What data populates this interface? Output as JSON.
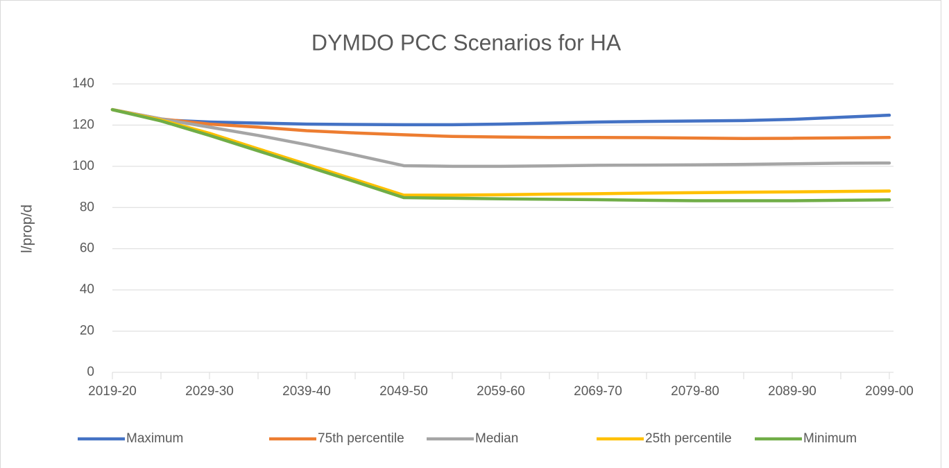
{
  "chart_data": {
    "type": "line",
    "title": "DYMDO PCC Scenarios for HA",
    "y_label": "l/prop/d",
    "categories": [
      "2019-20",
      null,
      "2029-30",
      null,
      "2039-40",
      null,
      "2049-50",
      null,
      "2059-60",
      null,
      "2069-70",
      null,
      "2079-80",
      null,
      "2089-90",
      null,
      "2099-00"
    ],
    "series": [
      {
        "name": "Maximum",
        "color": "#4472c4",
        "values": [
          127.5,
          122.5,
          121.5,
          121,
          120.5,
          120.3,
          120.2,
          120.2,
          120.5,
          121,
          121.5,
          121.8,
          122,
          122.2,
          122.8,
          123.8,
          124.8
        ]
      },
      {
        "name": "75th percentile",
        "color": "#ed7d31",
        "values": [
          127.5,
          123,
          120.5,
          119,
          117.3,
          116.2,
          115.3,
          114.5,
          114.2,
          114,
          114,
          113.9,
          113.7,
          113.5,
          113.6,
          113.8,
          114
        ]
      },
      {
        "name": "Median",
        "color": "#a5a5a5",
        "values": [
          127.5,
          123,
          119,
          115,
          110.5,
          105.5,
          100.3,
          100,
          100,
          100.2,
          100.5,
          100.6,
          100.7,
          100.9,
          101.2,
          101.5,
          101.6
        ]
      },
      {
        "name": "25th percentile",
        "color": "#ffc000",
        "values": [
          127.5,
          122.5,
          116,
          108.5,
          101,
          93.5,
          86,
          86,
          86.2,
          86.5,
          86.7,
          87,
          87.2,
          87.4,
          87.6,
          87.8,
          88
        ]
      },
      {
        "name": "Minimum",
        "color": "#70ad47",
        "values": [
          127.5,
          122,
          115,
          107.5,
          100,
          92.5,
          84.8,
          84.5,
          84.2,
          84,
          83.8,
          83.5,
          83.3,
          83.3,
          83.3,
          83.5,
          83.7
        ]
      }
    ],
    "ylim": [
      0,
      140
    ],
    "yticks": [
      0,
      20,
      40,
      60,
      80,
      100,
      120,
      140
    ],
    "grid": true,
    "legend": "bottom"
  }
}
